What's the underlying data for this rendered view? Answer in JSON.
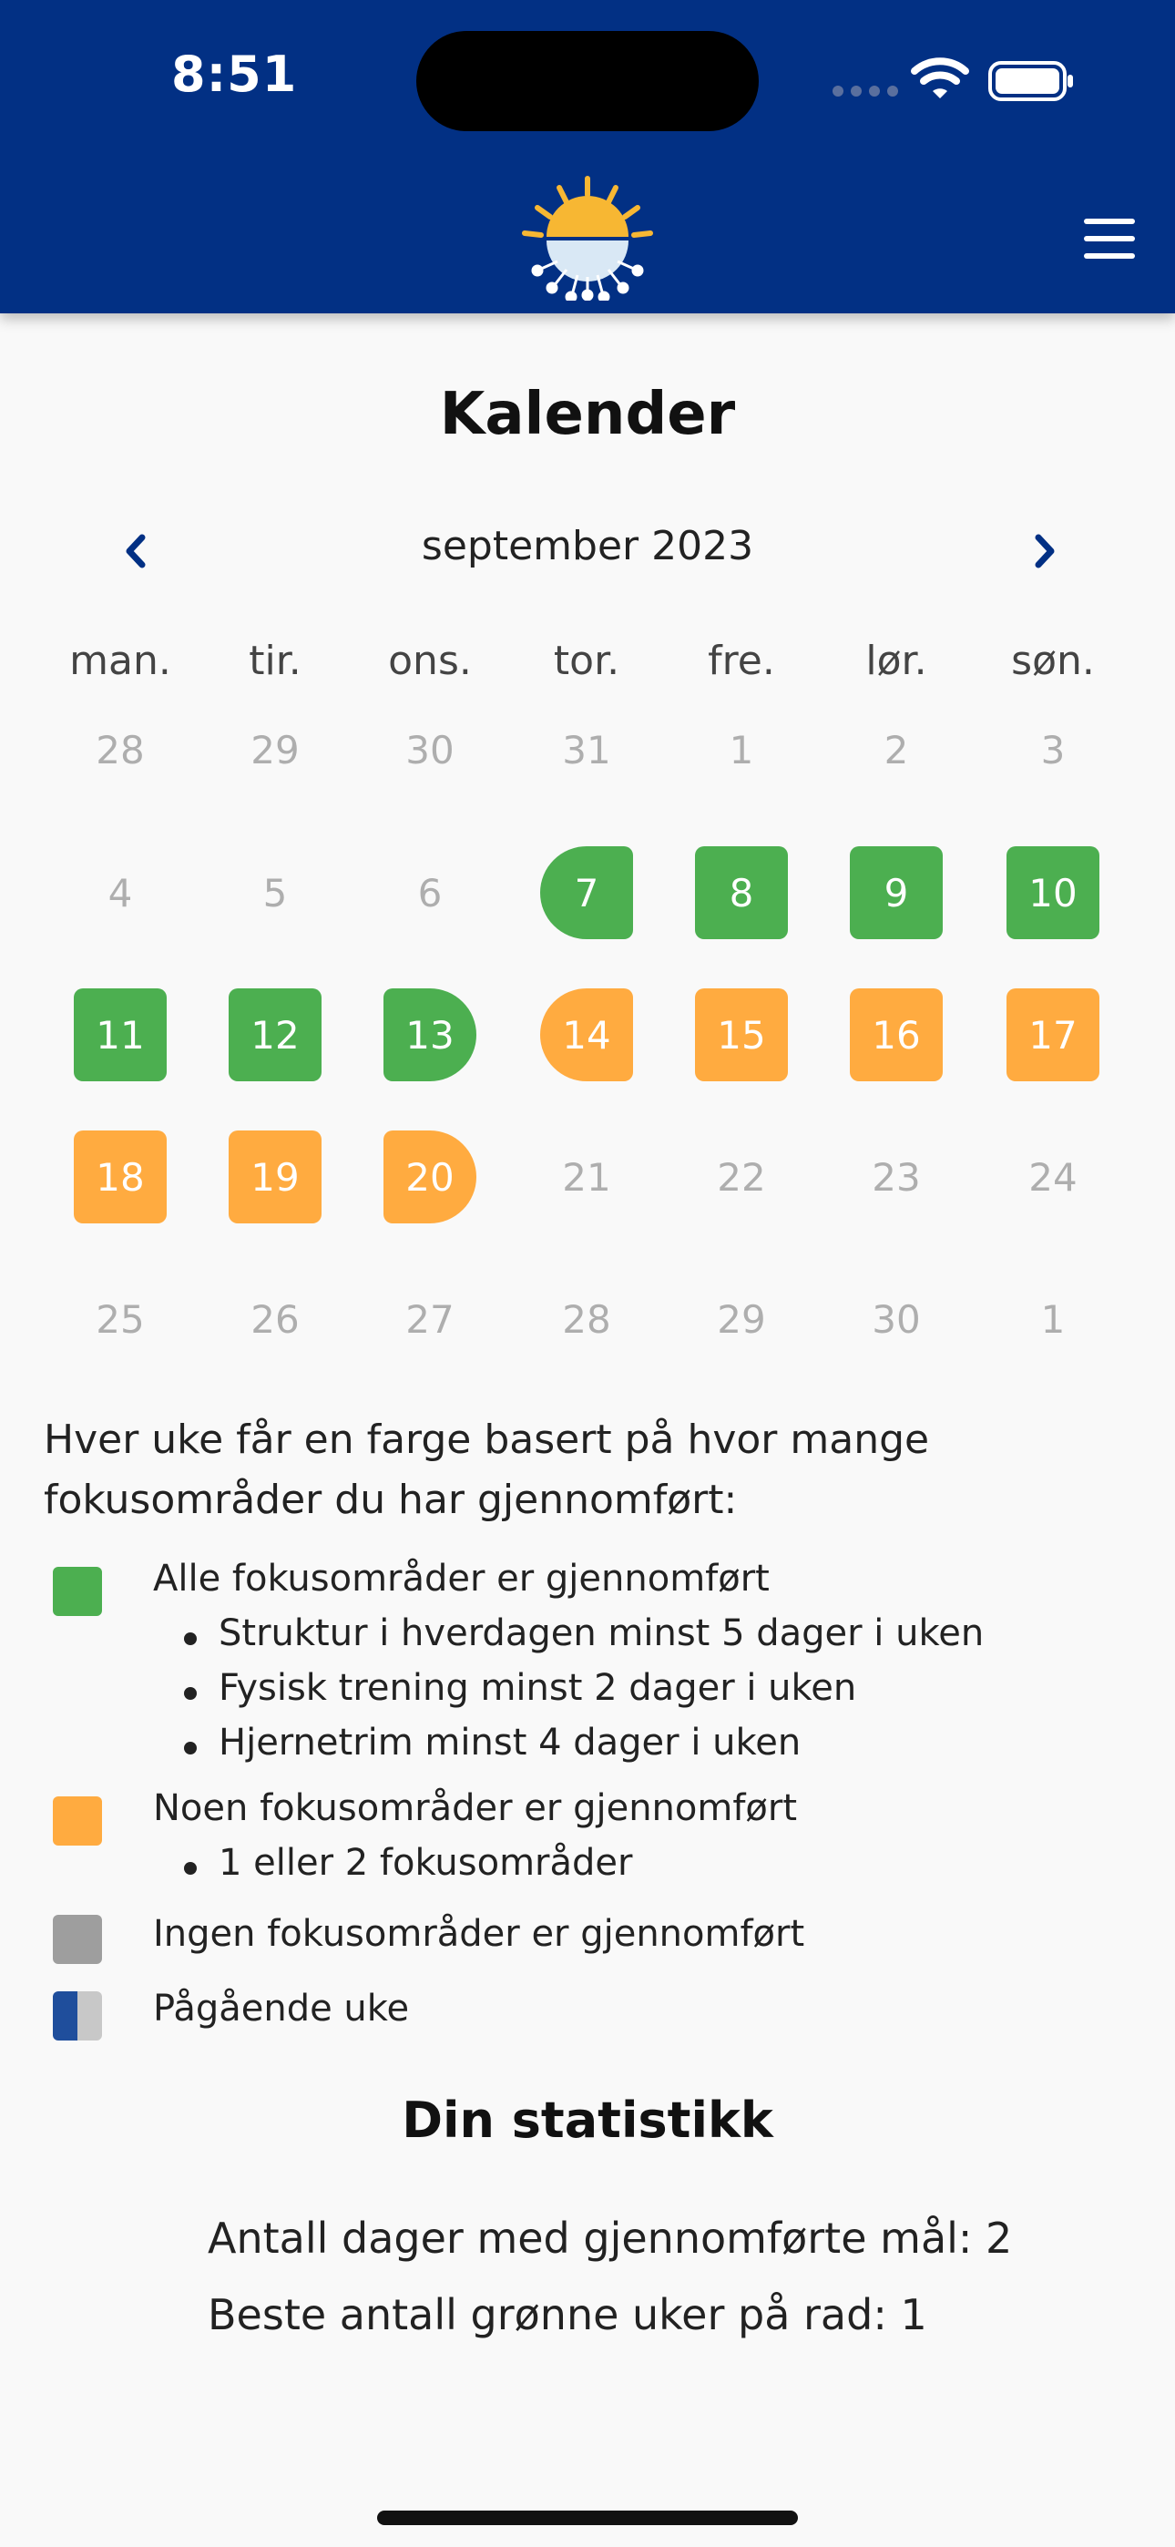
{
  "status_bar": {
    "time": "8:51"
  },
  "header": {
    "logo": "sun-logo",
    "menu_icon": "hamburger-menu-icon",
    "background": "#023084"
  },
  "page": {
    "title": "Kalender"
  },
  "calendar": {
    "month_label": "september 2023",
    "prev_icon": "chevron-left-icon",
    "next_icon": "chevron-right-icon",
    "weekdays": [
      "man.",
      "tir.",
      "ons.",
      "tor.",
      "fre.",
      "lør.",
      "søn."
    ],
    "weeks": [
      [
        {
          "d": "28",
          "s": "none"
        },
        {
          "d": "29",
          "s": "none"
        },
        {
          "d": "30",
          "s": "none"
        },
        {
          "d": "31",
          "s": "none"
        },
        {
          "d": "1",
          "s": "none"
        },
        {
          "d": "2",
          "s": "none"
        },
        {
          "d": "3",
          "s": "none"
        }
      ],
      [
        {
          "d": "4",
          "s": "none"
        },
        {
          "d": "5",
          "s": "none"
        },
        {
          "d": "6",
          "s": "none"
        },
        {
          "d": "7",
          "s": "green",
          "shape": "start"
        },
        {
          "d": "8",
          "s": "green"
        },
        {
          "d": "9",
          "s": "green"
        },
        {
          "d": "10",
          "s": "green"
        }
      ],
      [
        {
          "d": "11",
          "s": "green"
        },
        {
          "d": "12",
          "s": "green"
        },
        {
          "d": "13",
          "s": "green",
          "shape": "end"
        },
        {
          "d": "14",
          "s": "orange",
          "shape": "start"
        },
        {
          "d": "15",
          "s": "orange"
        },
        {
          "d": "16",
          "s": "orange"
        },
        {
          "d": "17",
          "s": "orange"
        }
      ],
      [
        {
          "d": "18",
          "s": "orange"
        },
        {
          "d": "19",
          "s": "orange"
        },
        {
          "d": "20",
          "s": "orange",
          "shape": "end"
        },
        {
          "d": "21",
          "s": "none"
        },
        {
          "d": "22",
          "s": "none"
        },
        {
          "d": "23",
          "s": "none"
        },
        {
          "d": "24",
          "s": "none"
        }
      ],
      [
        {
          "d": "25",
          "s": "none"
        },
        {
          "d": "26",
          "s": "none"
        },
        {
          "d": "27",
          "s": "none"
        },
        {
          "d": "28",
          "s": "none"
        },
        {
          "d": "29",
          "s": "none"
        },
        {
          "d": "30",
          "s": "none"
        },
        {
          "d": "1",
          "s": "none"
        }
      ]
    ],
    "colors": {
      "green": "#4caf50",
      "orange": "#ffab40",
      "gray": "#9e9e9e",
      "current_dark": "#1f4e9c",
      "current_light": "#c8c8c8"
    }
  },
  "legend": {
    "intro": "Hver uke får en farge basert på hvor mange fokusområder du har gjennomført:",
    "items": [
      {
        "label": "Alle fokusområder er gjennomført",
        "bullets": [
          "Struktur i hverdagen minst 5 dager i uken",
          "Fysisk trening minst 2 dager i uken",
          "Hjernetrim minst 4 dager i uken"
        ]
      },
      {
        "label": "Noen fokusområder er gjennomført",
        "bullets": [
          "1 eller 2 fokusområder"
        ]
      },
      {
        "label": "Ingen fokusområder er gjennomført"
      },
      {
        "label": "Pågående uke"
      }
    ]
  },
  "stats": {
    "title": "Din statistikk",
    "days_completed": "Antall dager med gjennomførte mål: 2",
    "best_green_streak": "Beste antall grønne uker på rad: 1"
  }
}
